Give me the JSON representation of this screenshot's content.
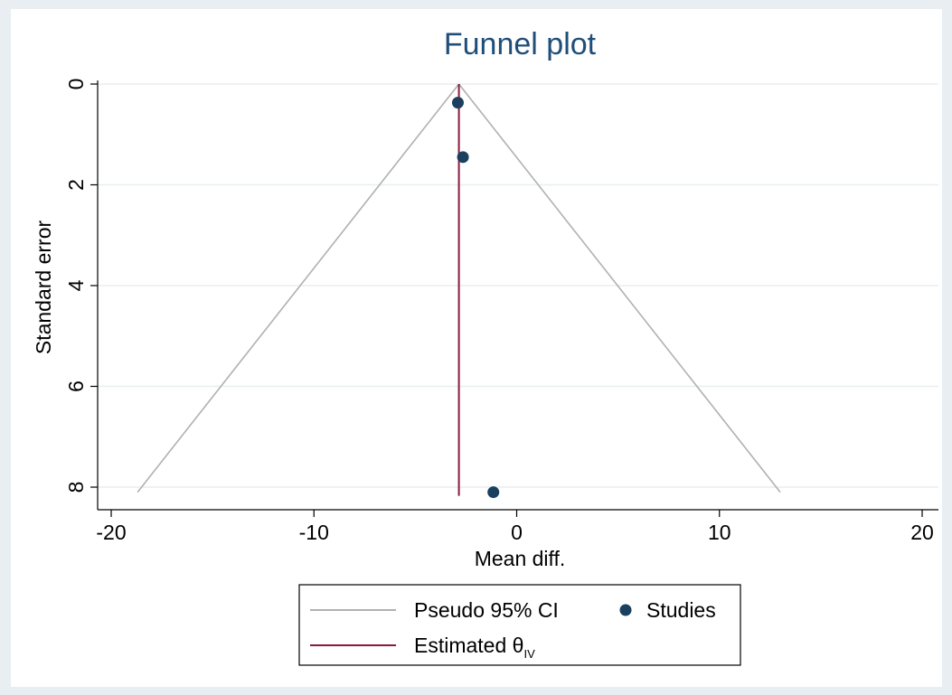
{
  "chart_data": {
    "type": "scatter",
    "title": "Funnel plot",
    "xlabel": "Mean diff.",
    "ylabel": "Standard error",
    "xlim": [
      -20,
      20
    ],
    "ylim": [
      8.1,
      0
    ],
    "y_reversed": true,
    "xticks": [
      -20,
      -10,
      0,
      10,
      20
    ],
    "yticks": [
      0,
      2,
      4,
      6,
      8
    ],
    "xtick_labels": [
      "-20",
      "-10",
      "0",
      "10",
      "20"
    ],
    "ytick_labels": [
      "0",
      "2",
      "4",
      "6",
      "8"
    ],
    "grid": "horizontal",
    "legend_position": "bottom",
    "estimate": -2.85,
    "ci_max_se": 8.1,
    "ci_bottom": [
      -18.7,
      13.0
    ],
    "series": [
      {
        "name": "Studies",
        "type": "scatter",
        "color": "#1a3f5f",
        "points": [
          {
            "x": -2.9,
            "y": 0.37
          },
          {
            "x": -2.65,
            "y": 1.45
          },
          {
            "x": -1.15,
            "y": 8.1
          }
        ]
      }
    ],
    "legend": {
      "ci": "Pseudo 95% CI",
      "studies": "Studies",
      "estimate_prefix": "Estimated θ",
      "estimate_subscript": "IV"
    },
    "colors": {
      "ci_line": "#b0b0b0",
      "estimate_line": "#8b1a3a",
      "points": "#1a3f5f",
      "title": "#1f4e79",
      "background": "#e8eef2",
      "plot_bg": "#ffffff"
    }
  }
}
